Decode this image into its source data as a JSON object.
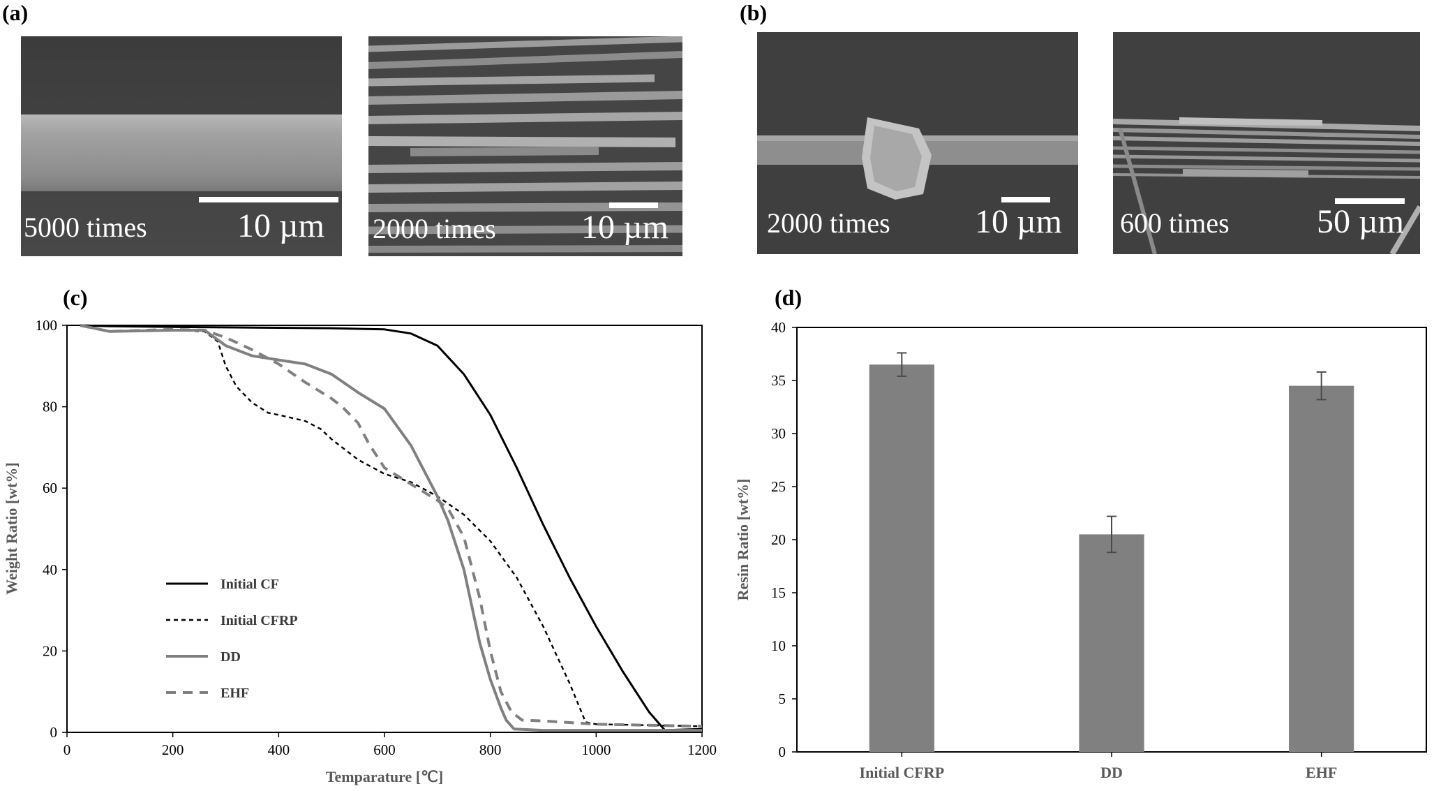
{
  "panels": {
    "a": {
      "label": "(a)",
      "images": [
        {
          "magnification": "5000 times",
          "scale": "10 µm"
        },
        {
          "magnification": "2000 times",
          "scale": "10 µm"
        }
      ]
    },
    "b": {
      "label": "(b)",
      "images": [
        {
          "magnification": "2000 times",
          "scale": "10 µm"
        },
        {
          "magnification": "600 times",
          "scale": "50 µm"
        }
      ]
    },
    "c": {
      "label": "(c)"
    },
    "d": {
      "label": "(d)"
    }
  },
  "chart_data": [
    {
      "id": "c",
      "type": "line",
      "title": "",
      "xlabel": "Temparature [℃]",
      "ylabel": "Weight Ratio [wt%]",
      "xlim": [
        0,
        1200
      ],
      "ylim": [
        0,
        100
      ],
      "xticks": [
        0,
        200,
        400,
        600,
        800,
        1000,
        1200
      ],
      "yticks": [
        0,
        20,
        40,
        60,
        80,
        100
      ],
      "legend_position": "bottom-left",
      "series": [
        {
          "name": "Initial CF",
          "color": "#000000",
          "dash": "solid",
          "width": 3,
          "x": [
            25,
            80,
            200,
            300,
            400,
            500,
            600,
            650,
            700,
            750,
            800,
            850,
            900,
            950,
            1000,
            1050,
            1100,
            1130,
            1145,
            1200
          ],
          "y": [
            100,
            99.8,
            99.6,
            99.5,
            99.4,
            99.3,
            99,
            98,
            95,
            88,
            78,
            65,
            51,
            38,
            26,
            15,
            5,
            0.5,
            0.6,
            0.8
          ]
        },
        {
          "name": "Initial CFRP",
          "color": "#000000",
          "dash": "6,5",
          "width": 2.4,
          "x": [
            25,
            80,
            200,
            260,
            285,
            300,
            320,
            350,
            380,
            400,
            450,
            480,
            500,
            550,
            600,
            650,
            700,
            750,
            800,
            850,
            900,
            950,
            980,
            1000,
            1200
          ],
          "y": [
            100,
            98.5,
            98.8,
            98.5,
            96,
            90,
            85,
            81,
            78.5,
            78,
            76.5,
            74.5,
            72,
            67,
            63.5,
            61.5,
            58,
            53.5,
            47,
            38,
            26,
            12,
            2.5,
            2,
            1.5
          ]
        },
        {
          "name": "DD",
          "color": "#808080",
          "dash": "solid",
          "width": 4,
          "x": [
            25,
            80,
            200,
            260,
            300,
            350,
            400,
            450,
            500,
            550,
            600,
            650,
            700,
            720,
            750,
            780,
            800,
            820,
            830,
            845,
            900,
            1200
          ],
          "y": [
            100,
            98.5,
            98.8,
            98.8,
            95,
            92.5,
            91.5,
            90.5,
            88,
            83.5,
            79.5,
            70.5,
            58,
            52,
            40,
            22,
            13,
            6,
            3,
            0.8,
            0.5,
            0.5
          ]
        },
        {
          "name": "EHF",
          "color": "#808080",
          "dash": "14,10",
          "width": 4,
          "x": [
            25,
            80,
            200,
            260,
            300,
            350,
            400,
            450,
            500,
            520,
            550,
            570,
            600,
            650,
            700,
            720,
            750,
            780,
            800,
            820,
            840,
            860,
            900,
            1000,
            1200
          ],
          "y": [
            100,
            98.5,
            99,
            98.8,
            97,
            94,
            90.5,
            86,
            82,
            80,
            76,
            71,
            65,
            61,
            57,
            55,
            48,
            33,
            20,
            10,
            5,
            3,
            2.8,
            2,
            1.5
          ]
        }
      ]
    },
    {
      "id": "d",
      "type": "bar",
      "title": "",
      "xlabel": "",
      "ylabel": "Resin Ratio [wt%]",
      "ylim": [
        0,
        40
      ],
      "yticks": [
        0,
        5,
        10,
        15,
        20,
        25,
        30,
        35,
        40
      ],
      "categories": [
        "Initial CFRP",
        "DD",
        "EHF"
      ],
      "values": [
        36.5,
        20.5,
        34.5
      ],
      "errors": [
        1.1,
        1.7,
        1.3
      ],
      "bar_color": "#808080"
    }
  ]
}
